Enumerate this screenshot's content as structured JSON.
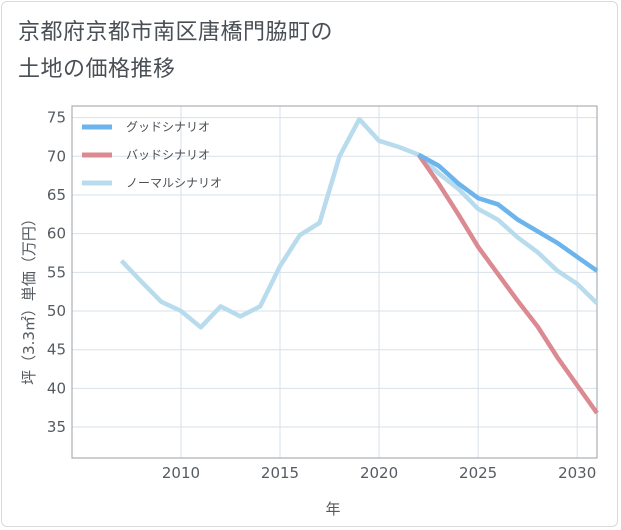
{
  "chart_data": {
    "type": "line",
    "title": "京都府京都市南区唐橋門脇町の\n土地の価格推移",
    "xlabel": "年",
    "ylabel": "坪（3.3㎡）単価（万円）",
    "xlim": [
      2004.5,
      2031
    ],
    "ylim": [
      31,
      76.5
    ],
    "x_ticks": [
      2010,
      2015,
      2020,
      2025,
      2030
    ],
    "y_ticks": [
      35,
      40,
      45,
      50,
      55,
      60,
      65,
      70,
      75
    ],
    "grid": true,
    "legend_position": "top-left",
    "series": [
      {
        "name": "グッドシナリオ",
        "color": "#6cb4ec",
        "points": [
          [
            2022,
            70.2
          ],
          [
            2023,
            68.8
          ],
          [
            2024,
            66.5
          ],
          [
            2025,
            64.6
          ],
          [
            2026,
            63.8
          ],
          [
            2027,
            61.8
          ],
          [
            2028,
            60.3
          ],
          [
            2029,
            58.8
          ],
          [
            2030,
            57.0
          ],
          [
            2031,
            55.2
          ]
        ]
      },
      {
        "name": "バッドシナリオ",
        "color": "#dc8a92",
        "points": [
          [
            2022,
            70.2
          ],
          [
            2023,
            66.5
          ],
          [
            2024,
            62.5
          ],
          [
            2025,
            58.3
          ],
          [
            2026,
            54.8
          ],
          [
            2027,
            51.3
          ],
          [
            2028,
            48.0
          ],
          [
            2029,
            44.0
          ],
          [
            2030,
            40.4
          ],
          [
            2031,
            36.8
          ]
        ]
      },
      {
        "name": "ノーマルシナリオ",
        "color": "#b8dced",
        "points": [
          [
            2007,
            56.5
          ],
          [
            2008,
            53.8
          ],
          [
            2009,
            51.2
          ],
          [
            2010,
            50.0
          ],
          [
            2011,
            47.9
          ],
          [
            2012,
            50.6
          ],
          [
            2013,
            49.3
          ],
          [
            2014,
            50.6
          ],
          [
            2015,
            55.8
          ],
          [
            2016,
            59.8
          ],
          [
            2017,
            61.4
          ],
          [
            2018,
            70.0
          ],
          [
            2019,
            74.8
          ],
          [
            2020,
            72.0
          ],
          [
            2021,
            71.2
          ],
          [
            2022,
            70.2
          ],
          [
            2023,
            67.8
          ],
          [
            2024,
            65.8
          ],
          [
            2025,
            63.2
          ],
          [
            2026,
            61.8
          ],
          [
            2027,
            59.5
          ],
          [
            2028,
            57.6
          ],
          [
            2029,
            55.2
          ],
          [
            2030,
            53.5
          ],
          [
            2031,
            51.0
          ]
        ]
      }
    ]
  }
}
